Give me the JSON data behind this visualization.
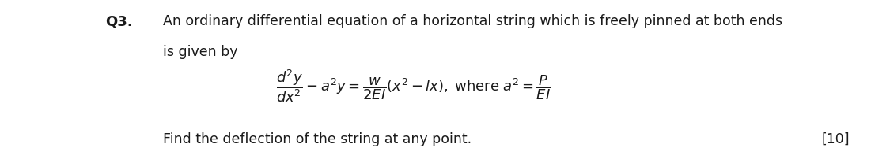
{
  "background_color": "#ffffff",
  "fig_width": 11.25,
  "fig_height": 2.02,
  "dpi": 100,
  "q_label": "Q3.",
  "q_label_fontsize": 13,
  "q_label_fontweight": "bold",
  "text_fontsize": 12.5,
  "equation_fontsize": 13,
  "find_fontsize": 12.5,
  "marks_fontsize": 12.5,
  "font_family": "DejaVu Sans",
  "text_color": "#1a1a1a"
}
